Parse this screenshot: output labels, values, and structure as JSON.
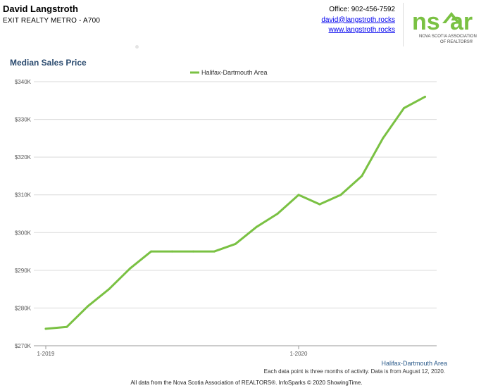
{
  "header": {
    "agent_name": "David Langstroth",
    "company": "EXIT REALTY METRO - A700",
    "office_phone": "Office: 902-456-7592",
    "email": "david@langstroth.rocks",
    "website": "www.langstroth.rocks"
  },
  "logo": {
    "wordmark": "nsar",
    "line1": "NOVA SCOTIA ASSOCIATION",
    "line2": "OF REALTORS®",
    "color": "#7ac143"
  },
  "chart_data": {
    "type": "line",
    "title": "Median Sales Price",
    "x": [
      "1-2019",
      "2-2019",
      "3-2019",
      "4-2019",
      "5-2019",
      "6-2019",
      "7-2019",
      "8-2019",
      "9-2019",
      "10-2019",
      "11-2019",
      "12-2019",
      "1-2020",
      "2-2020",
      "3-2020",
      "4-2020",
      "5-2020",
      "6-2020",
      "7-2020"
    ],
    "x_ticks": [
      "1-2019",
      "1-2020"
    ],
    "series": [
      {
        "name": "Halifax-Dartmouth Area",
        "color": "#7ac143",
        "values": [
          274500,
          275000,
          280500,
          285000,
          290500,
          295000,
          295000,
          295000,
          295000,
          297000,
          301500,
          305000,
          310000,
          307500,
          310000,
          315000,
          325000,
          333000,
          336000
        ]
      }
    ],
    "yticks": [
      "$270K",
      "$280K",
      "$290K",
      "$300K",
      "$310K",
      "$320K",
      "$330K",
      "$340K"
    ],
    "ylim": [
      270000,
      340000
    ],
    "legend_position": "top-center",
    "grid": true,
    "footer_label": "Halifax-Dartmouth Area",
    "note": "Each data point is three months of activity. Data is from August 12, 2020."
  },
  "footer": {
    "source": "All data from the Nova Scotia Association of REALTORS®. InfoSparks © 2020 ShowingTime."
  }
}
